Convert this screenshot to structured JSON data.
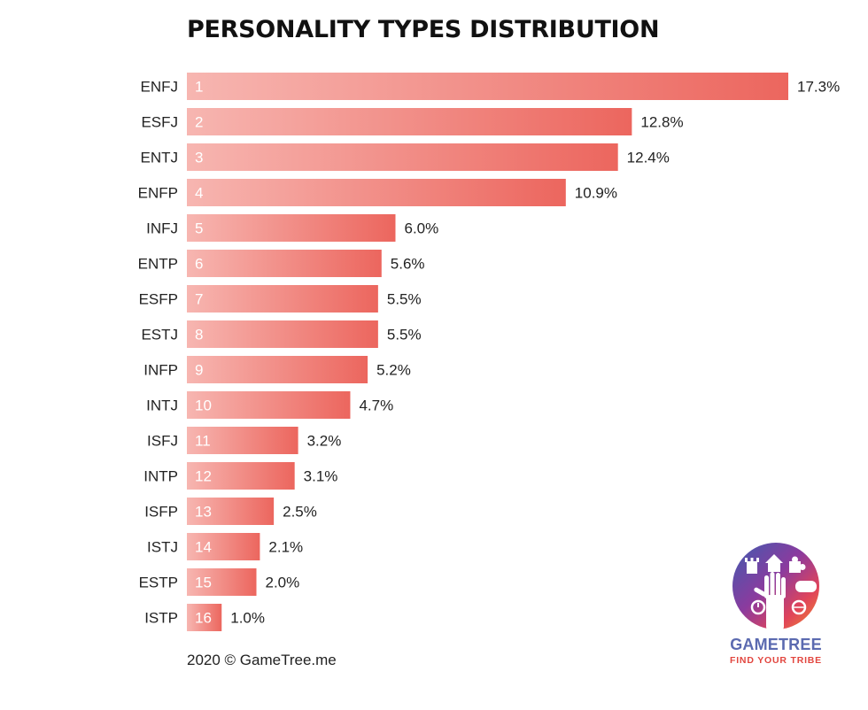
{
  "chart_data": {
    "type": "bar",
    "orientation": "horizontal",
    "title": "PERSONALITY TYPES DISTRIBUTION",
    "categories": [
      "ENFJ",
      "ESFJ",
      "ENTJ",
      "ENFP",
      "INFJ",
      "ENTP",
      "ESFP",
      "ESTJ",
      "INFP",
      "INTJ",
      "ISFJ",
      "INTP",
      "ISFP",
      "ISTJ",
      "ESTP",
      "ISTP"
    ],
    "ranks": [
      "1",
      "2",
      "3",
      "4",
      "5",
      "6",
      "7",
      "8",
      "9",
      "10",
      "11",
      "12",
      "13",
      "14",
      "15",
      "16"
    ],
    "values": [
      17.3,
      12.8,
      12.4,
      10.9,
      6.0,
      5.6,
      5.5,
      5.5,
      5.2,
      4.7,
      3.2,
      3.1,
      2.5,
      2.1,
      2.0,
      1.0
    ],
    "value_labels": [
      "17.3%",
      "12.8%",
      "12.4%",
      "10.9%",
      "6.0%",
      "5.6%",
      "5.5%",
      "5.5%",
      "5.2%",
      "4.7%",
      "3.2%",
      "3.1%",
      "2.5%",
      "2.1%",
      "2.0%",
      "1.0%"
    ],
    "xlim": [
      0,
      17.3
    ],
    "grid": false,
    "colors": {
      "bar_start": "#f7b6b1",
      "bar_end": "#ec665e",
      "rank_text": "#ffffff",
      "label_text": "#222222"
    }
  },
  "footer": {
    "text": "2020 © GameTree.me"
  },
  "logo": {
    "name": "GAMETREE",
    "tagline": "FIND YOUR TRIBE",
    "icons": [
      "rook-icon",
      "house-icon",
      "puzzle-icon",
      "gamepad-icon",
      "basketball-icon",
      "stopwatch-icon",
      "hand-icon"
    ]
  }
}
